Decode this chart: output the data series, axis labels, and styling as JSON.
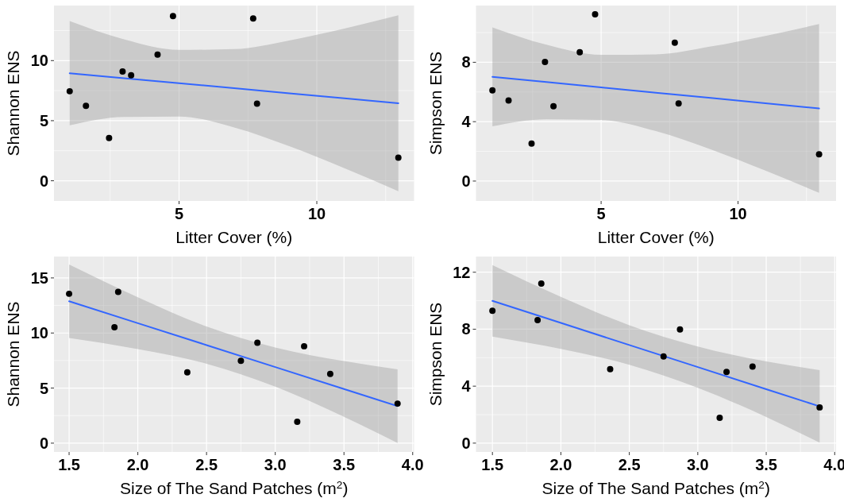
{
  "chart_data": [
    {
      "type": "scatter",
      "xlabel": "Litter Cover (%)",
      "ylabel": "Shannon ENS",
      "xlim": [
        0.46,
        13.53
      ],
      "ylim": [
        -1.68,
        14.58
      ],
      "xticks": [
        {
          "value": 2.5,
          "label": null
        },
        5,
        {
          "value": 7.5,
          "label": null
        },
        10,
        {
          "value": 12.5,
          "label": null
        }
      ],
      "yticks": [
        0,
        {
          "value": 2.5,
          "label": null
        },
        5,
        {
          "value": 7.5,
          "label": null
        },
        10,
        {
          "value": 12.5,
          "label": null
        }
      ],
      "grid": true,
      "series": [
        {
          "marker": "circle",
          "color": "#000000",
          "x": [
            1.03,
            1.62,
            2.46,
            2.95,
            3.26,
            4.22,
            4.78,
            7.69,
            7.83,
            12.96
          ],
          "values": [
            7.45,
            6.24,
            3.56,
            9.1,
            8.78,
            10.5,
            13.71,
            13.5,
            6.42,
            1.92
          ]
        },
        {
          "type": "line",
          "color": "#3366ff",
          "x": [
            1.03,
            3,
            5,
            7,
            9,
            11,
            12.96
          ],
          "values": [
            8.95,
            8.54,
            8.12,
            7.7,
            7.28,
            6.86,
            6.45
          ],
          "lower": [
            4.61,
            5.31,
            5.35,
            4.44,
            2.88,
            1.05,
            -0.87
          ],
          "upper": [
            13.29,
            11.77,
            10.89,
            10.96,
            11.68,
            12.67,
            13.77
          ]
        }
      ]
    },
    {
      "type": "scatter",
      "xlabel": "Litter Cover (%)",
      "ylabel": "Simpson ENS",
      "xlim": [
        0.43,
        13.58
      ],
      "ylim": [
        -1.34,
        11.82
      ],
      "xticks": [
        {
          "value": 2.5,
          "label": null
        },
        5,
        {
          "value": 7.5,
          "label": null
        },
        10,
        {
          "value": 12.5,
          "label": null
        }
      ],
      "yticks": [
        0,
        {
          "value": 2,
          "label": null
        },
        4,
        {
          "value": 6,
          "label": null
        },
        8,
        {
          "value": 10,
          "label": null
        }
      ],
      "grid": true,
      "series": [
        {
          "marker": "circle",
          "color": "#000000",
          "x": [
            1.03,
            1.62,
            2.46,
            2.95,
            3.26,
            4.22,
            4.78,
            7.69,
            7.83,
            12.96
          ],
          "values": [
            6.11,
            5.43,
            2.52,
            8.02,
            5.04,
            8.68,
            11.23,
            9.32,
            5.23,
            1.8
          ]
        },
        {
          "type": "line",
          "color": "#3366ff",
          "x": [
            1.03,
            3,
            5,
            7,
            9,
            11,
            12.96
          ],
          "values": [
            7.02,
            6.67,
            6.31,
            5.95,
            5.6,
            5.24,
            4.89
          ],
          "lower": [
            3.69,
            4.16,
            4.12,
            3.37,
            2.14,
            0.7,
            -0.79
          ],
          "upper": [
            10.35,
            9.18,
            8.5,
            8.53,
            9.06,
            9.78,
            10.57
          ]
        }
      ]
    },
    {
      "type": "scatter",
      "xlabel": "Size of The Sand Patches (m$^{2}$)",
      "ylabel": "Shannon ENS",
      "xlim": [
        1.39,
        4.01
      ],
      "ylim": [
        -0.8,
        16.94
      ],
      "xticks": [
        1.5,
        {
          "value": 1.75,
          "label": null
        },
        {
          "value": 2,
          "label": "2.0"
        },
        {
          "value": 2.25,
          "label": null
        },
        2.5,
        {
          "value": 2.75,
          "label": null
        },
        {
          "value": 3,
          "label": "3.0"
        },
        {
          "value": 3.25,
          "label": null
        },
        3.5,
        {
          "value": 3.75,
          "label": null
        },
        {
          "value": 4,
          "label": "4.0"
        }
      ],
      "yticks": [
        0,
        {
          "value": 2.5,
          "label": null
        },
        5,
        {
          "value": 7.5,
          "label": null
        },
        10,
        {
          "value": 12.5,
          "label": null
        },
        15
      ],
      "grid": true,
      "series": [
        {
          "marker": "circle",
          "color": "#000000",
          "x": [
            1.5,
            1.857,
            1.83,
            2.36,
            2.75,
            2.87,
            3.21,
            3.16,
            3.4,
            3.89
          ],
          "values": [
            13.56,
            13.73,
            10.52,
            6.43,
            7.48,
            9.12,
            8.8,
            1.94,
            6.28,
            3.59
          ]
        },
        {
          "type": "line",
          "color": "#3366ff",
          "x": [
            1.5,
            2,
            2.5,
            3,
            3.5,
            3.89
          ],
          "values": [
            12.88,
            10.89,
            8.9,
            6.91,
            4.92,
            3.36
          ],
          "lower": [
            9.55,
            8.54,
            7.21,
            5.13,
            2.39,
            0.02
          ],
          "upper": [
            16.21,
            13.24,
            10.59,
            8.69,
            7.45,
            6.7
          ]
        }
      ]
    },
    {
      "type": "scatter",
      "xlabel": "Size of The Sand Patches (m$^{2}$)",
      "ylabel": "Simpson ENS",
      "xlim": [
        1.38,
        4.01
      ],
      "ylim": [
        -0.62,
        13.1
      ],
      "xticks": [
        1.5,
        {
          "value": 1.75,
          "label": null
        },
        {
          "value": 2,
          "label": "2.0"
        },
        {
          "value": 2.25,
          "label": null
        },
        2.5,
        {
          "value": 2.75,
          "label": null
        },
        {
          "value": 3,
          "label": "3.0"
        },
        {
          "value": 3.25,
          "label": null
        },
        3.5,
        {
          "value": 3.75,
          "label": null
        },
        {
          "value": 4,
          "label": "4.0"
        }
      ],
      "yticks": [
        0,
        {
          "value": 2,
          "label": null
        },
        4,
        {
          "value": 6,
          "label": null
        },
        8,
        {
          "value": 10,
          "label": null
        },
        12
      ],
      "grid": true,
      "series": [
        {
          "marker": "circle",
          "color": "#000000",
          "x": [
            1.5,
            1.857,
            1.83,
            2.36,
            2.75,
            2.87,
            3.21,
            3.16,
            3.4,
            3.89
          ],
          "values": [
            9.29,
            11.21,
            8.64,
            5.2,
            6.09,
            7.98,
            5.0,
            1.78,
            5.37,
            2.51
          ]
        },
        {
          "type": "line",
          "color": "#3366ff",
          "x": [
            1.5,
            2,
            2.5,
            3,
            3.5,
            3.89
          ],
          "values": [
            9.99,
            8.44,
            6.89,
            5.34,
            3.79,
            2.58
          ],
          "lower": [
            7.48,
            6.61,
            5.5,
            3.89,
            1.84,
            0.03
          ],
          "upper": [
            12.5,
            10.27,
            8.28,
            6.79,
            5.74,
            5.13
          ]
        }
      ]
    }
  ]
}
